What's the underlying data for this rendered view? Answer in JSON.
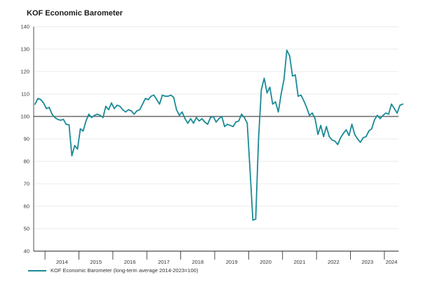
{
  "chart_data": {
    "type": "line",
    "title": "KOF Economic Barometer",
    "xlabel": "",
    "ylabel": "",
    "ylim": [
      40,
      140
    ],
    "y_ticks": [
      40,
      50,
      60,
      70,
      80,
      90,
      100,
      110,
      120,
      130,
      140
    ],
    "x_tick_labels": [
      "2014",
      "2015",
      "2016",
      "2017",
      "2018",
      "2019",
      "2020",
      "2021",
      "2022",
      "2023",
      "2024"
    ],
    "x_range": [
      "2013-09",
      "2024-05"
    ],
    "reference_line": 100,
    "grid": "horizontal",
    "line_color": "#1a8a96",
    "series": [
      {
        "name": "KOF Economic Barometer (long-term average 2014-2023=100)",
        "points": [
          [
            "2013-09",
            105.5
          ],
          [
            "2013-10",
            108
          ],
          [
            "2013-11",
            107.5
          ],
          [
            "2013-12",
            106
          ],
          [
            "2014-01",
            103.5
          ],
          [
            "2014-02",
            104
          ],
          [
            "2014-03",
            101
          ],
          [
            "2014-04",
            99.5
          ],
          [
            "2014-05",
            98.7
          ],
          [
            "2014-06",
            98.3
          ],
          [
            "2014-07",
            98.7
          ],
          [
            "2014-08",
            96.5
          ],
          [
            "2014-09",
            96.3
          ],
          [
            "2014-10",
            82.5
          ],
          [
            "2014-11",
            87
          ],
          [
            "2014-12",
            85.5
          ],
          [
            "2015-01",
            94.5
          ],
          [
            "2015-02",
            93.5
          ],
          [
            "2015-03",
            98
          ],
          [
            "2015-04",
            101
          ],
          [
            "2015-05",
            99.5
          ],
          [
            "2015-06",
            100.5
          ],
          [
            "2015-07",
            101
          ],
          [
            "2015-08",
            100.5
          ],
          [
            "2015-09",
            99.5
          ],
          [
            "2015-10",
            104.5
          ],
          [
            "2015-11",
            103
          ],
          [
            "2015-12",
            106
          ],
          [
            "2016-01",
            103.5
          ],
          [
            "2016-02",
            105
          ],
          [
            "2016-03",
            104.5
          ],
          [
            "2016-04",
            103
          ],
          [
            "2016-05",
            102
          ],
          [
            "2016-06",
            103
          ],
          [
            "2016-07",
            102.5
          ],
          [
            "2016-08",
            101
          ],
          [
            "2016-09",
            102.5
          ],
          [
            "2016-10",
            103
          ],
          [
            "2016-11",
            105.5
          ],
          [
            "2016-12",
            108
          ],
          [
            "2017-01",
            107.5
          ],
          [
            "2017-02",
            109
          ],
          [
            "2017-03",
            109.5
          ],
          [
            "2017-04",
            107.5
          ],
          [
            "2017-05",
            105.5
          ],
          [
            "2017-06",
            109.5
          ],
          [
            "2017-07",
            109
          ],
          [
            "2017-08",
            109
          ],
          [
            "2017-09",
            109.5
          ],
          [
            "2017-10",
            108.5
          ],
          [
            "2017-11",
            103
          ],
          [
            "2017-12",
            100.5
          ],
          [
            "2018-01",
            102
          ],
          [
            "2018-02",
            99
          ],
          [
            "2018-03",
            97
          ],
          [
            "2018-04",
            99
          ],
          [
            "2018-05",
            97
          ],
          [
            "2018-06",
            99.5
          ],
          [
            "2018-07",
            98
          ],
          [
            "2018-08",
            99
          ],
          [
            "2018-09",
            97.5
          ],
          [
            "2018-10",
            96.5
          ],
          [
            "2018-11",
            99.5
          ],
          [
            "2018-12",
            100
          ],
          [
            "2019-01",
            97.5
          ],
          [
            "2019-02",
            99
          ],
          [
            "2019-03",
            100
          ],
          [
            "2019-04",
            95.5
          ],
          [
            "2019-05",
            96.5
          ],
          [
            "2019-06",
            96
          ],
          [
            "2019-07",
            95.5
          ],
          [
            "2019-08",
            97.5
          ],
          [
            "2019-09",
            98
          ],
          [
            "2019-10",
            101
          ],
          [
            "2019-11",
            99.5
          ],
          [
            "2019-12",
            97
          ],
          [
            "2020-01",
            76
          ],
          [
            "2020-02",
            53.8
          ],
          [
            "2020-03",
            54.3
          ],
          [
            "2020-04",
            90
          ],
          [
            "2020-05",
            112
          ],
          [
            "2020-06",
            117
          ],
          [
            "2020-07",
            110.5
          ],
          [
            "2020-08",
            113
          ],
          [
            "2020-09",
            105.5
          ],
          [
            "2020-10",
            106.5
          ],
          [
            "2020-11",
            102
          ],
          [
            "2020-12",
            110
          ],
          [
            "2021-01",
            116.5
          ],
          [
            "2021-02",
            129.5
          ],
          [
            "2021-03",
            127
          ],
          [
            "2021-04",
            118
          ],
          [
            "2021-05",
            118.5
          ],
          [
            "2021-06",
            109
          ],
          [
            "2021-07",
            109.5
          ],
          [
            "2021-08",
            107
          ],
          [
            "2021-09",
            104
          ],
          [
            "2021-10",
            100.5
          ],
          [
            "2021-11",
            101.5
          ],
          [
            "2021-12",
            99
          ],
          [
            "2022-01",
            92
          ],
          [
            "2022-02",
            96
          ],
          [
            "2022-03",
            91
          ],
          [
            "2022-04",
            95.5
          ],
          [
            "2022-05",
            91
          ],
          [
            "2022-06",
            89.5
          ],
          [
            "2022-07",
            89
          ],
          [
            "2022-08",
            87.5
          ],
          [
            "2022-09",
            90.5
          ],
          [
            "2022-10",
            92.5
          ],
          [
            "2022-11",
            94
          ],
          [
            "2022-12",
            91.5
          ],
          [
            "2023-01",
            96.5
          ],
          [
            "2023-02",
            92
          ],
          [
            "2023-03",
            90
          ],
          [
            "2023-04",
            88.5
          ],
          [
            "2023-05",
            90.5
          ],
          [
            "2023-06",
            91
          ],
          [
            "2023-07",
            93.5
          ],
          [
            "2023-08",
            94.5
          ],
          [
            "2023-09",
            98.5
          ],
          [
            "2023-10",
            100.5
          ],
          [
            "2023-11",
            99
          ],
          [
            "2023-12",
            100.5
          ],
          [
            "2024-01",
            101.5
          ],
          [
            "2024-02",
            101
          ],
          [
            "2024-03",
            105.5
          ],
          [
            "2024-04",
            103.5
          ],
          [
            "2024-05",
            101.5
          ],
          [
            "2024-06",
            105
          ],
          [
            "2024-07",
            105.5
          ]
        ]
      }
    ]
  }
}
